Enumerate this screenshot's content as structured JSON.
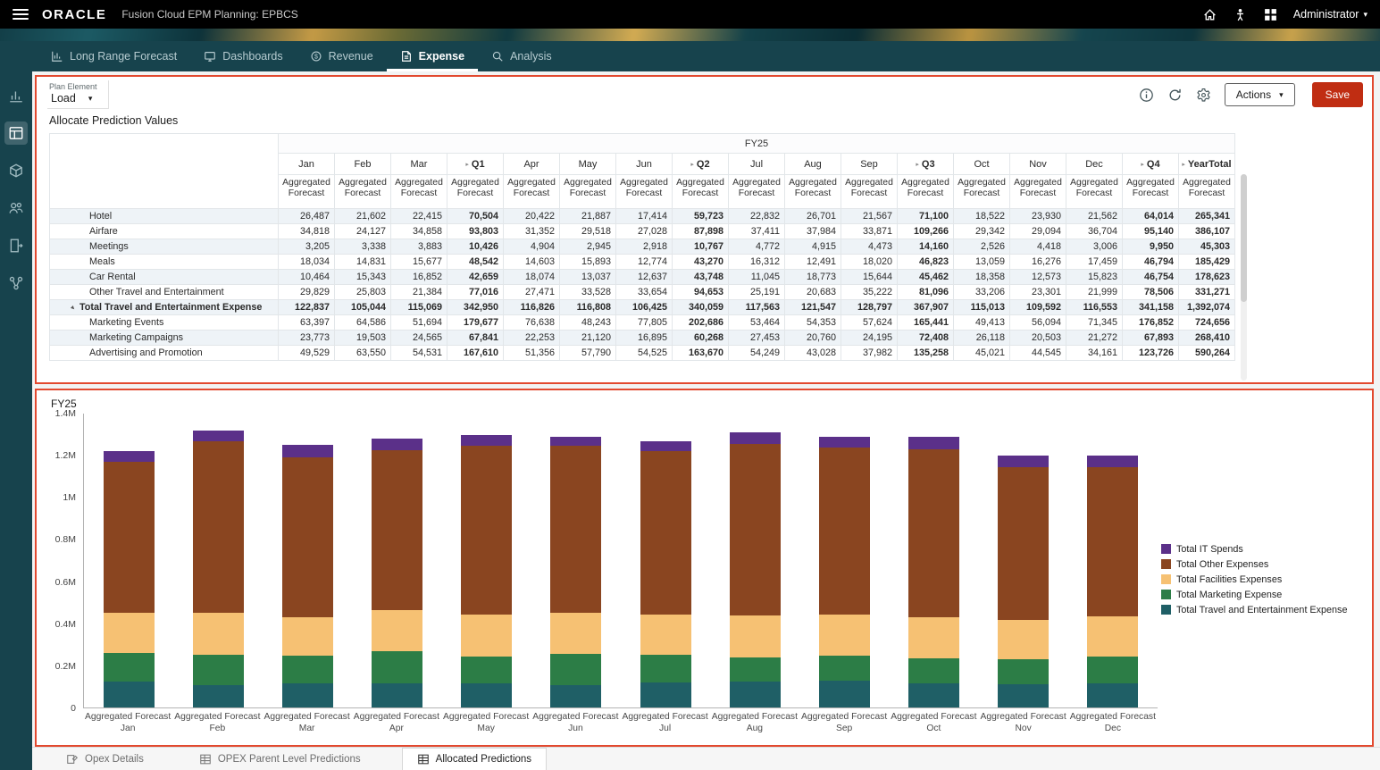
{
  "topbar": {
    "brand": "ORACLE",
    "app_title": "Fusion Cloud EPM Planning:  EPBCS",
    "user": "Administrator"
  },
  "nav": {
    "tabs": [
      {
        "label": "Long Range Forecast",
        "active": false
      },
      {
        "label": "Dashboards",
        "active": false
      },
      {
        "label": "Revenue",
        "active": false
      },
      {
        "label": "Expense",
        "active": true
      },
      {
        "label": "Analysis",
        "active": false
      }
    ]
  },
  "toolbar": {
    "plan_element_label": "Plan Element",
    "plan_element_value": "Load",
    "actions_label": "Actions",
    "save_label": "Save"
  },
  "form": {
    "title": "Allocate Prediction Values",
    "year_header": "FY25",
    "subheader_line1": "Aggregated",
    "subheader_line2": "Forecast",
    "columns": [
      {
        "label": "Jan",
        "kind": "month"
      },
      {
        "label": "Feb",
        "kind": "month"
      },
      {
        "label": "Mar",
        "kind": "month"
      },
      {
        "label": "Q1",
        "kind": "quarter"
      },
      {
        "label": "Apr",
        "kind": "month"
      },
      {
        "label": "May",
        "kind": "month"
      },
      {
        "label": "Jun",
        "kind": "month"
      },
      {
        "label": "Q2",
        "kind": "quarter"
      },
      {
        "label": "Jul",
        "kind": "month"
      },
      {
        "label": "Aug",
        "kind": "month"
      },
      {
        "label": "Sep",
        "kind": "month"
      },
      {
        "label": "Q3",
        "kind": "quarter"
      },
      {
        "label": "Oct",
        "kind": "month"
      },
      {
        "label": "Nov",
        "kind": "month"
      },
      {
        "label": "Dec",
        "kind": "month"
      },
      {
        "label": "Q4",
        "kind": "quarter"
      },
      {
        "label": "YearTotal",
        "kind": "total"
      }
    ],
    "rows": [
      {
        "label": "Hotel",
        "level": 1,
        "bold": false,
        "expanded": false,
        "values": [
          "26,487",
          "21,602",
          "22,415",
          "70,504",
          "20,422",
          "21,887",
          "17,414",
          "59,723",
          "22,832",
          "26,701",
          "21,567",
          "71,100",
          "18,522",
          "23,930",
          "21,562",
          "64,014",
          "265,341"
        ]
      },
      {
        "label": "Airfare",
        "level": 1,
        "bold": false,
        "expanded": false,
        "values": [
          "34,818",
          "24,127",
          "34,858",
          "93,803",
          "31,352",
          "29,518",
          "27,028",
          "87,898",
          "37,411",
          "37,984",
          "33,871",
          "109,266",
          "29,342",
          "29,094",
          "36,704",
          "95,140",
          "386,107"
        ]
      },
      {
        "label": "Meetings",
        "level": 1,
        "bold": false,
        "expanded": false,
        "values": [
          "3,205",
          "3,338",
          "3,883",
          "10,426",
          "4,904",
          "2,945",
          "2,918",
          "10,767",
          "4,772",
          "4,915",
          "4,473",
          "14,160",
          "2,526",
          "4,418",
          "3,006",
          "9,950",
          "45,303"
        ]
      },
      {
        "label": "Meals",
        "level": 1,
        "bold": false,
        "expanded": false,
        "values": [
          "18,034",
          "14,831",
          "15,677",
          "48,542",
          "14,603",
          "15,893",
          "12,774",
          "43,270",
          "16,312",
          "12,491",
          "18,020",
          "46,823",
          "13,059",
          "16,276",
          "17,459",
          "46,794",
          "185,429"
        ]
      },
      {
        "label": "Car Rental",
        "level": 1,
        "bold": false,
        "expanded": false,
        "values": [
          "10,464",
          "15,343",
          "16,852",
          "42,659",
          "18,074",
          "13,037",
          "12,637",
          "43,748",
          "11,045",
          "18,773",
          "15,644",
          "45,462",
          "18,358",
          "12,573",
          "15,823",
          "46,754",
          "178,623"
        ]
      },
      {
        "label": "Other Travel and Entertainment",
        "level": 1,
        "bold": false,
        "expanded": false,
        "values": [
          "29,829",
          "25,803",
          "21,384",
          "77,016",
          "27,471",
          "33,528",
          "33,654",
          "94,653",
          "25,191",
          "20,683",
          "35,222",
          "81,096",
          "33,206",
          "23,301",
          "21,999",
          "78,506",
          "331,271"
        ]
      },
      {
        "label": "Total Travel and Entertainment Expense",
        "level": 0,
        "bold": true,
        "expanded": true,
        "values": [
          "122,837",
          "105,044",
          "115,069",
          "342,950",
          "116,826",
          "116,808",
          "106,425",
          "340,059",
          "117,563",
          "121,547",
          "128,797",
          "367,907",
          "115,013",
          "109,592",
          "116,553",
          "341,158",
          "1,392,074"
        ]
      },
      {
        "label": "Marketing Events",
        "level": 1,
        "bold": false,
        "expanded": false,
        "values": [
          "63,397",
          "64,586",
          "51,694",
          "179,677",
          "76,638",
          "48,243",
          "77,805",
          "202,686",
          "53,464",
          "54,353",
          "57,624",
          "165,441",
          "49,413",
          "56,094",
          "71,345",
          "176,852",
          "724,656"
        ]
      },
      {
        "label": "Marketing Campaigns",
        "level": 1,
        "bold": false,
        "expanded": false,
        "values": [
          "23,773",
          "19,503",
          "24,565",
          "67,841",
          "22,253",
          "21,120",
          "16,895",
          "60,268",
          "27,453",
          "20,760",
          "24,195",
          "72,408",
          "26,118",
          "20,503",
          "21,272",
          "67,893",
          "268,410"
        ]
      },
      {
        "label": "Advertising and Promotion",
        "level": 1,
        "bold": false,
        "expanded": false,
        "values": [
          "49,529",
          "63,550",
          "54,531",
          "167,610",
          "51,356",
          "57,790",
          "54,525",
          "163,670",
          "54,249",
          "43,028",
          "37,982",
          "135,258",
          "45,021",
          "44,545",
          "34,161",
          "123,726",
          "590,264"
        ]
      }
    ]
  },
  "chart_data": {
    "type": "bar",
    "stacked": true,
    "title": "FY25",
    "x_prefix": "Aggregated Forecast",
    "x": [
      "Jan",
      "Feb",
      "Mar",
      "Apr",
      "May",
      "Jun",
      "Jul",
      "Aug",
      "Sep",
      "Oct",
      "Nov",
      "Dec"
    ],
    "ylim": [
      0,
      1400000
    ],
    "y_ticks": [
      {
        "label": "0",
        "value": 0
      },
      {
        "label": "0.2M",
        "value": 200000
      },
      {
        "label": "0.4M",
        "value": 400000
      },
      {
        "label": "0.6M",
        "value": 600000
      },
      {
        "label": "0.8M",
        "value": 800000
      },
      {
        "label": "1M",
        "value": 1000000
      },
      {
        "label": "1.2M",
        "value": 1200000
      },
      {
        "label": "1.4M",
        "value": 1400000
      }
    ],
    "legend_position": "right",
    "series": [
      {
        "name": "Total Travel and Entertainment Expense",
        "color": "#1f5f66",
        "values": [
          122837,
          105044,
          115069,
          116826,
          116808,
          106425,
          117563,
          121547,
          128797,
          115013,
          109592,
          116553
        ]
      },
      {
        "name": "Total Marketing Expense",
        "color": "#2c7d46",
        "values": [
          136699,
          147639,
          130790,
          150247,
          127153,
          149225,
          135166,
          118141,
          119801,
          120552,
          121142,
          126778
        ]
      },
      {
        "name": "Total Facilities Expenses",
        "color": "#f6c173",
        "values": [
          190000,
          200000,
          185000,
          195000,
          200000,
          195000,
          190000,
          200000,
          195000,
          195000,
          185000,
          190000
        ]
      },
      {
        "name": "Total Other Expenses",
        "color": "#8a4520",
        "values": [
          720464,
          817317,
          759141,
          762927,
          801039,
          794350,
          777271,
          815312,
          796402,
          799435,
          729266,
          711669
        ]
      },
      {
        "name": "Total IT Spends",
        "color": "#5b3089",
        "values": [
          50000,
          50000,
          60000,
          55000,
          55000,
          45000,
          50000,
          55000,
          50000,
          60000,
          55000,
          55000
        ]
      }
    ]
  },
  "footer_tabs": [
    {
      "label": "Opex Details",
      "active": false
    },
    {
      "label": "OPEX Parent Level Predictions",
      "active": false
    },
    {
      "label": "Allocated Predictions",
      "active": true
    }
  ],
  "colors": {
    "annotation_border": "#e2492f",
    "save_button": "#c02d12",
    "nav_background": "#17434d",
    "topbar_background": "#000000"
  }
}
